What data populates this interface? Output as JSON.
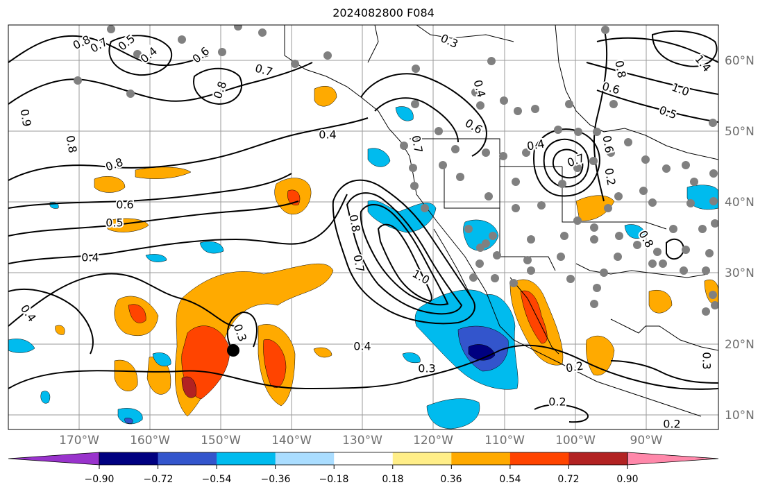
{
  "title": "2024082800 F084",
  "lon_labels": [
    "170°W",
    "160°W",
    "150°W",
    "140°W",
    "130°W",
    "120°W",
    "110°W",
    "100°W",
    "90°W"
  ],
  "lat_labels": [
    "60°N",
    "50°N",
    "40°N",
    "30°N",
    "20°N",
    "10°N"
  ],
  "colorbar": {
    "ticks": [
      "−0.90",
      "−0.72",
      "−0.54",
      "−0.36",
      "−0.18",
      "0.18",
      "0.36",
      "0.54",
      "0.72",
      "0.90"
    ],
    "colors": [
      "#9933cc",
      "#000080",
      "#3355cc",
      "#00bbee",
      "#aaddff",
      "#ffffff",
      "#ffee88",
      "#ffaa00",
      "#ff4400",
      "#b22222",
      "#ff88aa"
    ]
  },
  "contour_labels": [
    "0.8",
    "0.7",
    "0.5",
    "0.4",
    "0.6",
    "0.7",
    "0.8",
    "0.3",
    "0.4",
    "0.6",
    "1.4",
    "1.0",
    "0.5",
    "0.6",
    "0.8",
    "0.7",
    "0.4",
    "0.7",
    "0.6",
    "0.5",
    "0.4",
    "0.4",
    "0.4",
    "0.8",
    "0.7",
    "1.0",
    "0.4",
    "0.3",
    "0.3",
    "0.2",
    "0.2",
    "0.2",
    "0.3",
    "0.8",
    "0.9",
    "0.8",
    "0.6",
    "0.8",
    "0.2"
  ]
}
